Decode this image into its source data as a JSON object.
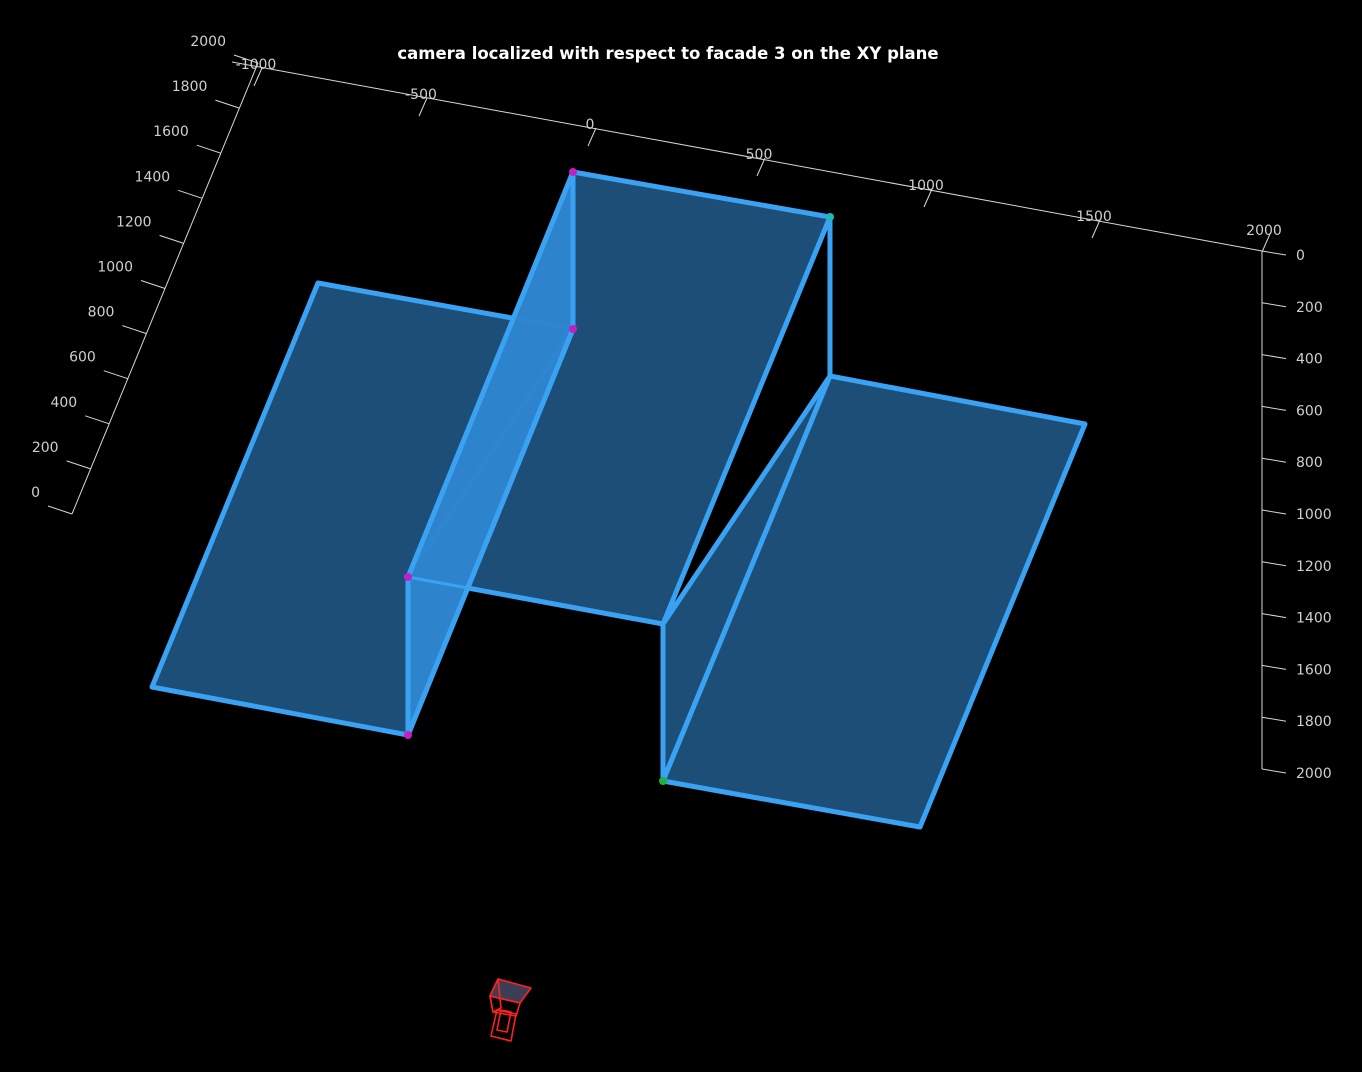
{
  "chart_data": {
    "type": "3d-surface",
    "title": "camera localized with respect to facade 3 on the XY plane",
    "colors": {
      "background": "#000000",
      "axis": "#d8d8d8",
      "tick_label": "#cfcfcf",
      "surface_fill": "#1e5079",
      "surface_fill_side": "#2f85cf",
      "surface_edge": "#3aa2f2",
      "camera": "#ff2020",
      "marker_magenta": "#c41ec4",
      "marker_teal": "#1fb7b7",
      "marker_green": "#1fb040"
    },
    "axes": {
      "x": {
        "ticks": [
          -1000,
          -500,
          0,
          500,
          1000,
          1500,
          2000
        ],
        "tick_labels": [
          "-1000",
          "-500",
          "0",
          "500",
          "1000",
          "1500",
          "2000"
        ],
        "range": [
          -1000,
          2000
        ]
      },
      "y": {
        "ticks": [
          0,
          200,
          400,
          600,
          800,
          1000,
          1200,
          1400,
          1600,
          1800,
          2000
        ],
        "tick_labels": [
          "0",
          "200",
          "400",
          "600",
          "800",
          "1000",
          "1200",
          "1400",
          "1600",
          "1800",
          "2000"
        ],
        "range": [
          0,
          2000
        ]
      },
      "z": {
        "ticks": [
          0,
          200,
          400,
          600,
          800,
          1000,
          1200,
          1400,
          1600,
          1800,
          2000
        ],
        "tick_labels": [
          "0",
          "200",
          "400",
          "600",
          "800",
          "1000",
          "1200",
          "1400",
          "1600",
          "1800",
          "2000"
        ],
        "range": [
          0,
          2000
        ]
      }
    },
    "grid": false,
    "series": [
      {
        "type": "facade-surface",
        "point_count": 8
      },
      {
        "type": "corner-markers",
        "point_count": 6
      },
      {
        "type": "camera-frustum",
        "point_count": 1
      }
    ]
  }
}
